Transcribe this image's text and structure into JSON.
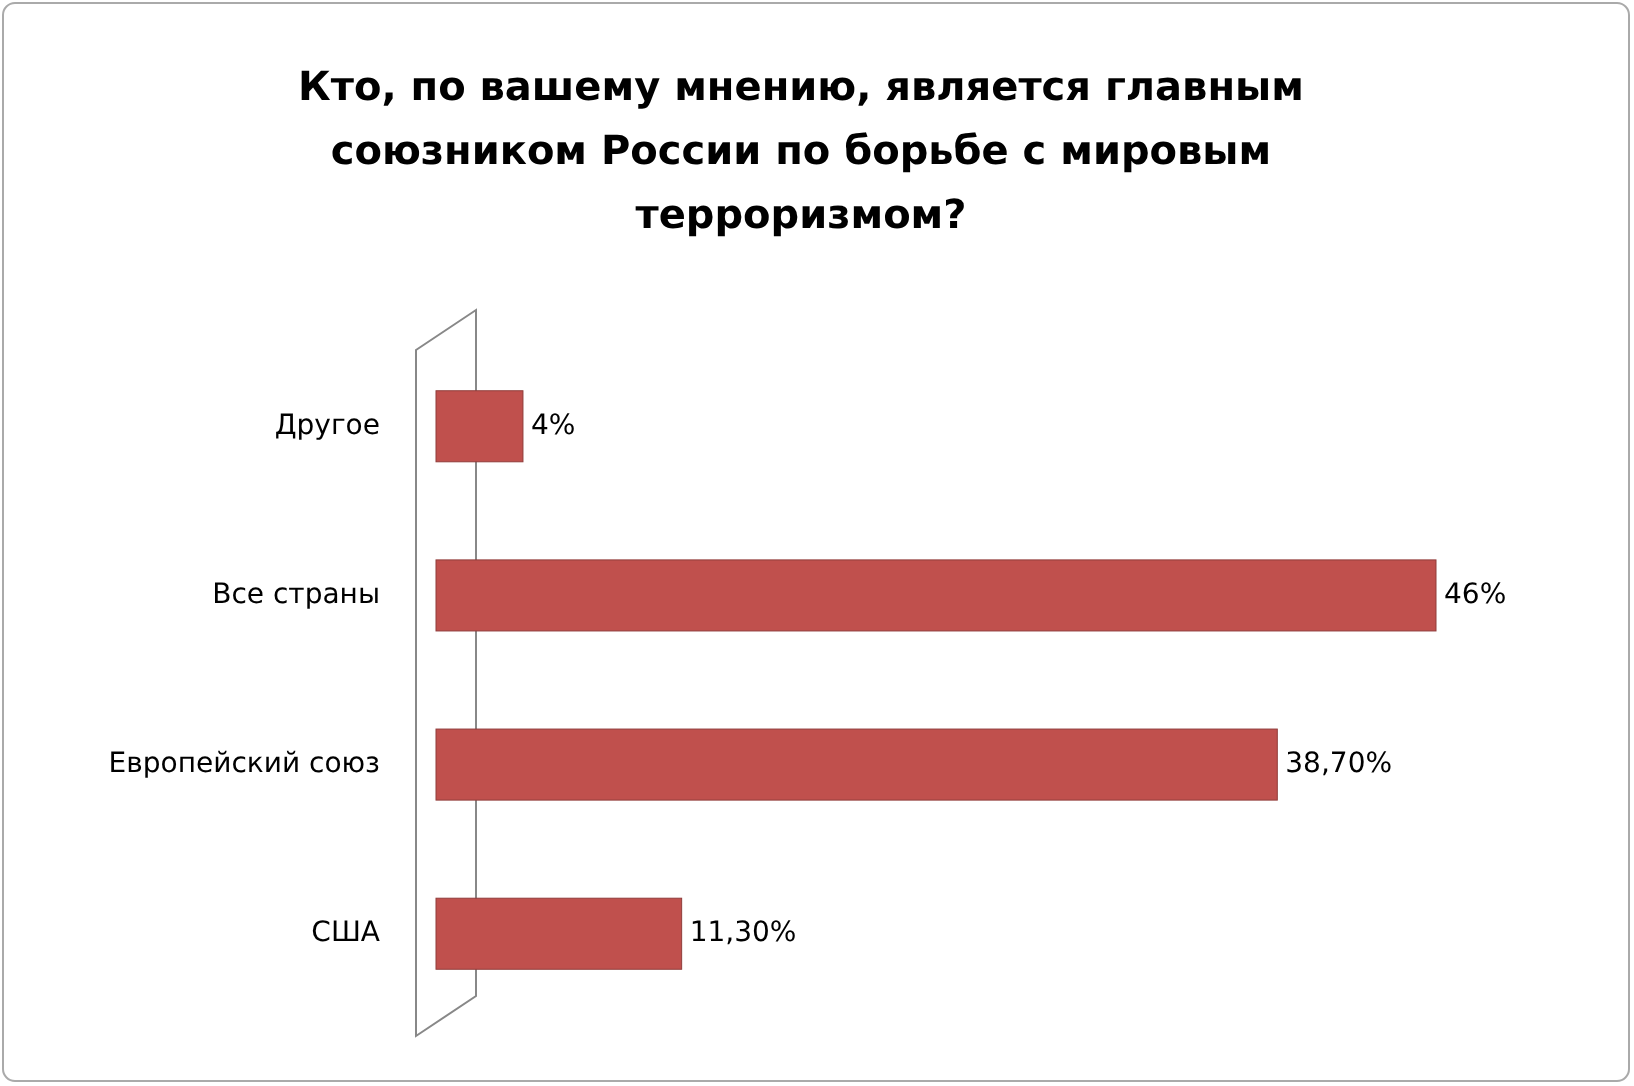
{
  "chart_data": {
    "type": "bar",
    "orientation": "horizontal",
    "title": "Кто, по вашему мнению, является главным союзником России по борьбе с мировым терроризмом?",
    "categories": [
      "Другое",
      "Все страны",
      "Европейский союз",
      "США"
    ],
    "values": [
      4,
      46,
      38.7,
      11.3
    ],
    "value_labels": [
      "4%",
      "46%",
      "38,70%",
      "11,30%"
    ],
    "color": "#c0504d"
  }
}
